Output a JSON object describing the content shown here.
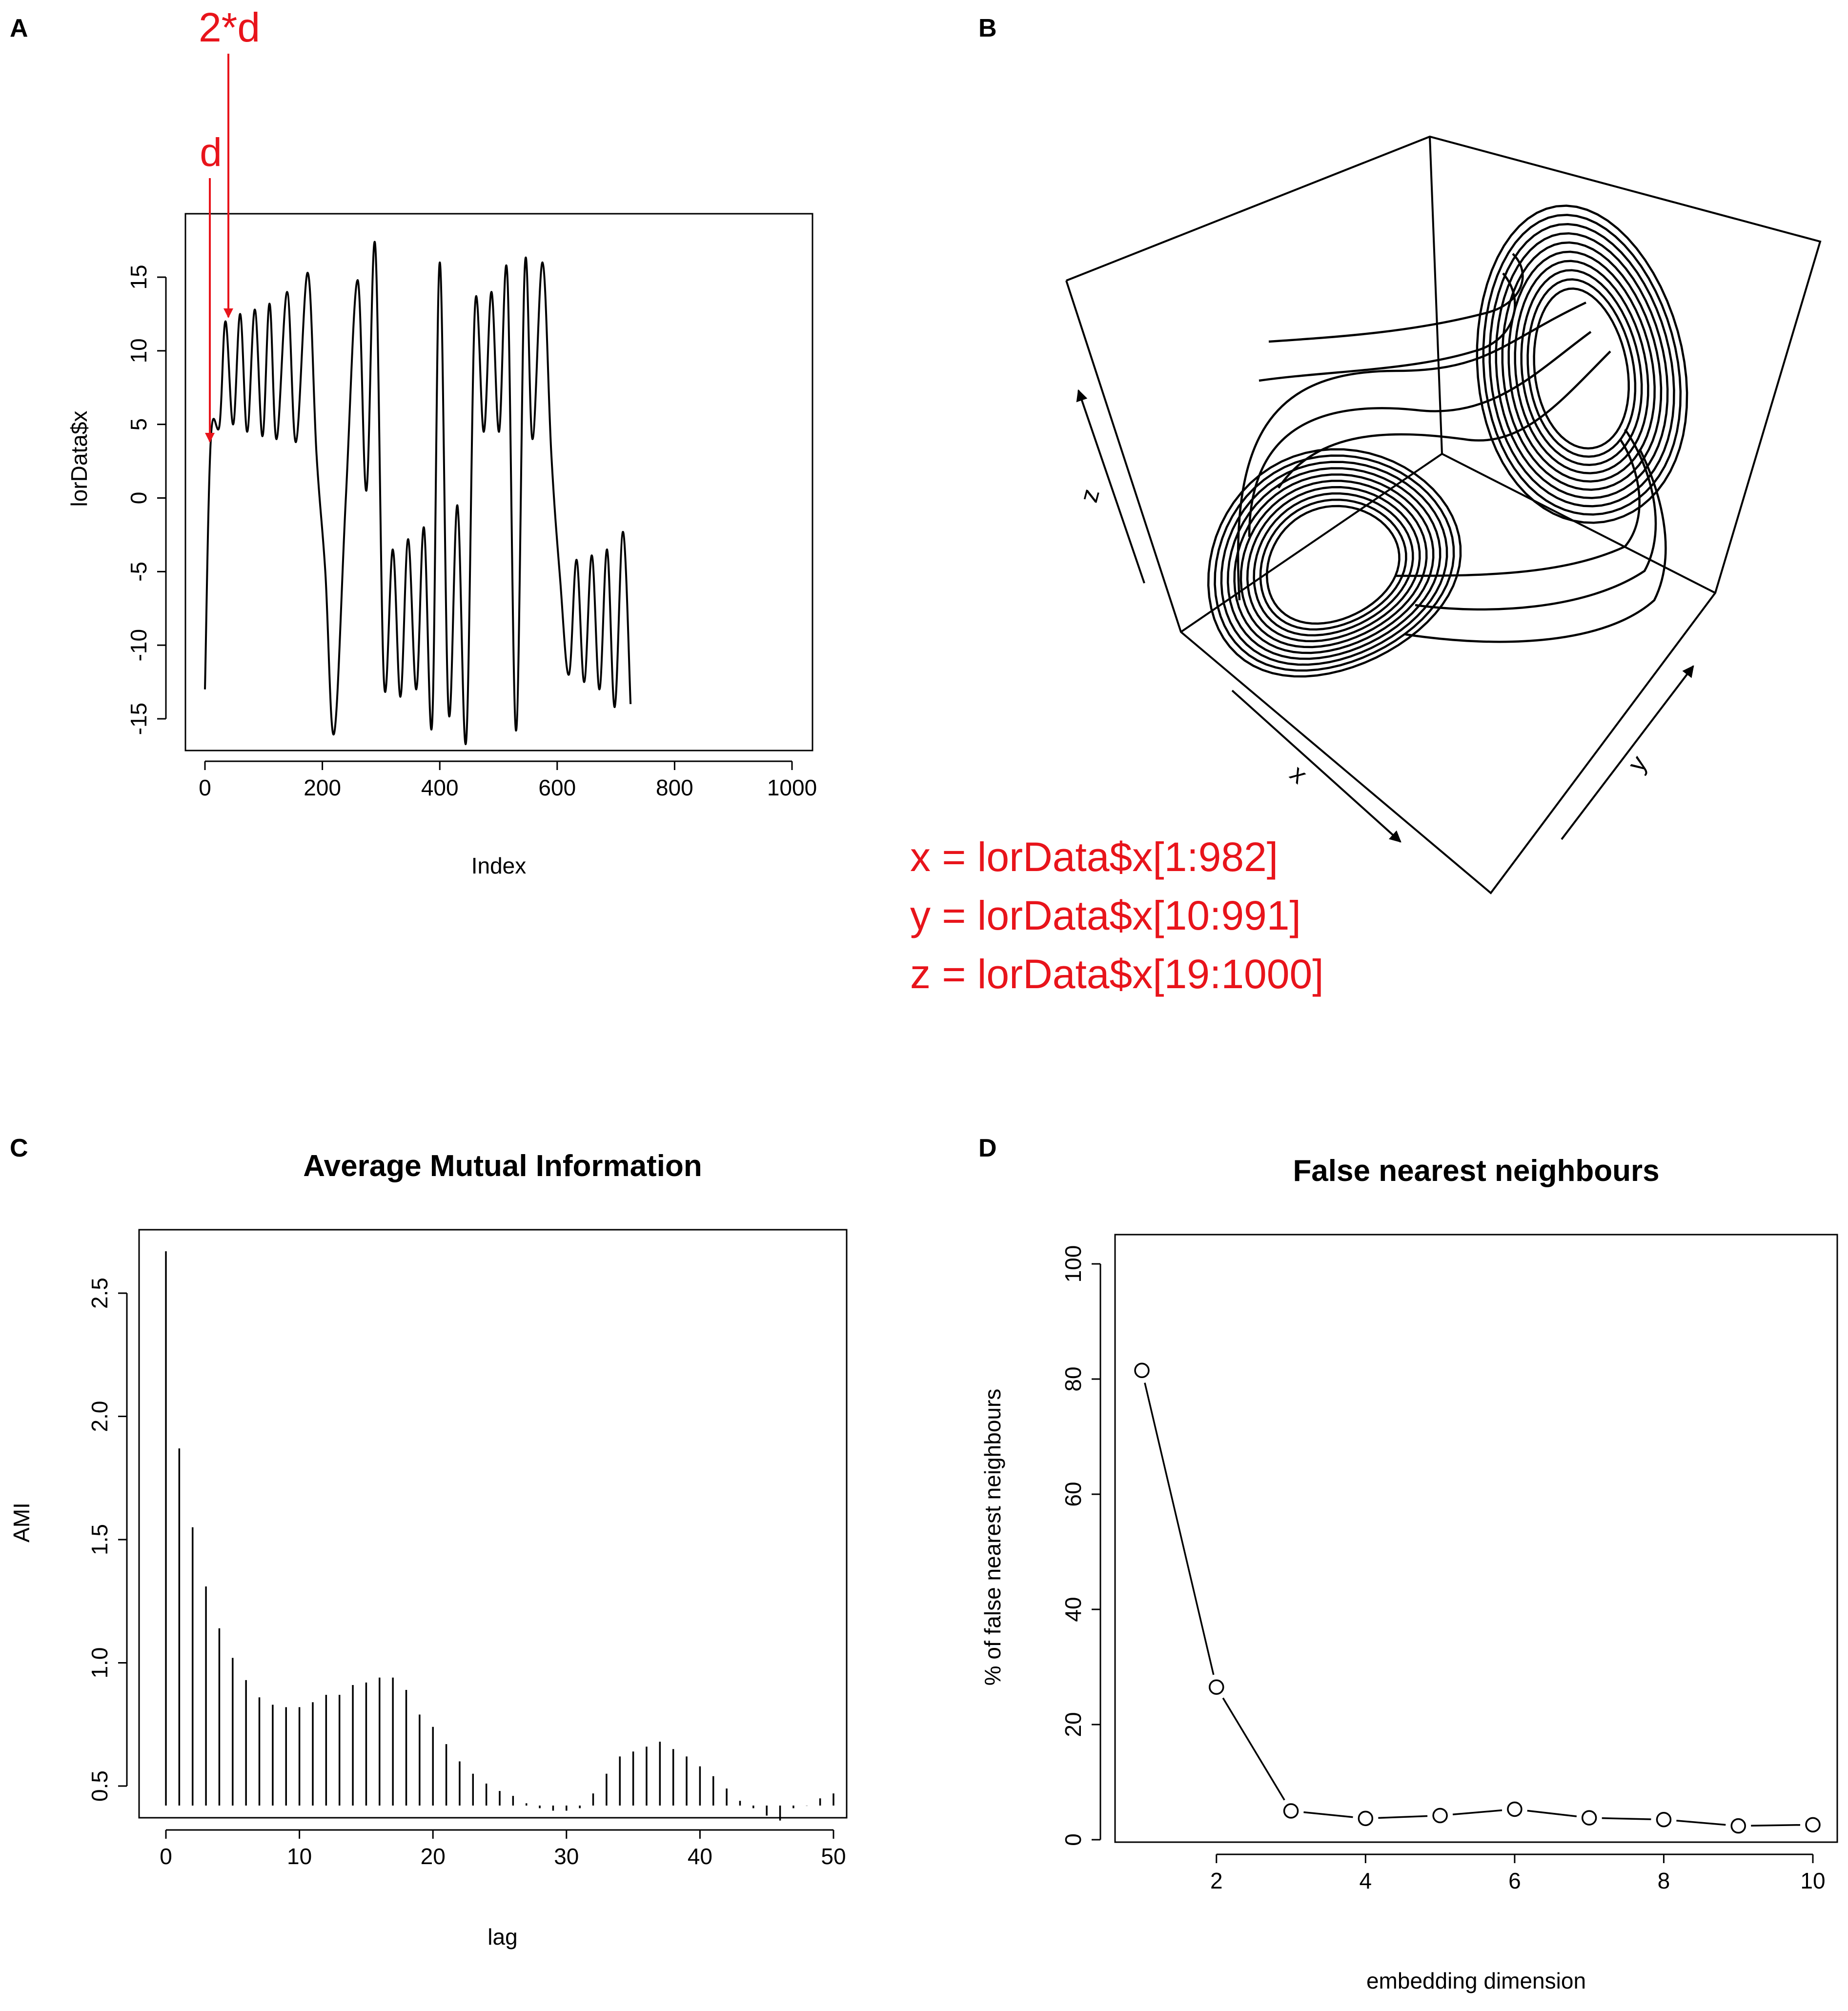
{
  "panels": {
    "a": {
      "letter": "A",
      "annotation_d": "d",
      "annotation_2d": "2*d"
    },
    "b": {
      "letter": "B",
      "axis_x": "x",
      "axis_y": "y",
      "axis_z": "z",
      "eq_x": "x = lorData$x[1:982]",
      "eq_y": "y = lorData$x[10:991]",
      "eq_z": "z = lorData$x[19:1000]"
    },
    "c": {
      "letter": "C"
    },
    "d": {
      "letter": "D"
    }
  },
  "colors": {
    "annotation": "#e8141b",
    "line": "#000000"
  },
  "chart_data": [
    {
      "id": "A",
      "type": "line",
      "title": "",
      "xlabel": "Index",
      "ylabel": "lorData$x",
      "xlim": [
        0,
        1000
      ],
      "ylim": [
        -17,
        18
      ],
      "xticks": [
        "0",
        "200",
        "400",
        "600",
        "800",
        "1000"
      ],
      "yticks": [
        "-15",
        "-10",
        "-5",
        "0",
        "5",
        "10",
        "15"
      ],
      "keypoints": [
        [
          0,
          -13
        ],
        [
          10,
          4
        ],
        [
          25,
          5
        ],
        [
          35,
          12
        ],
        [
          48,
          5
        ],
        [
          60,
          12.5
        ],
        [
          72,
          4.5
        ],
        [
          85,
          12.8
        ],
        [
          98,
          4.2
        ],
        [
          110,
          13.2
        ],
        [
          122,
          4
        ],
        [
          140,
          14
        ],
        [
          155,
          3.8
        ],
        [
          175,
          15.3
        ],
        [
          190,
          3
        ],
        [
          205,
          -5
        ],
        [
          220,
          -16
        ],
        [
          240,
          0
        ],
        [
          260,
          14.8
        ],
        [
          275,
          0.5
        ],
        [
          290,
          17.2
        ],
        [
          305,
          -12.5
        ],
        [
          320,
          -3.5
        ],
        [
          333,
          -13.5
        ],
        [
          346,
          -2.8
        ],
        [
          360,
          -13
        ],
        [
          373,
          -2
        ],
        [
          387,
          -15.3
        ],
        [
          400,
          16
        ],
        [
          415,
          -14.5
        ],
        [
          430,
          -0.5
        ],
        [
          445,
          -16.5
        ],
        [
          460,
          13
        ],
        [
          475,
          4.5
        ],
        [
          488,
          14
        ],
        [
          501,
          4.5
        ],
        [
          515,
          15.2
        ],
        [
          530,
          -15.8
        ],
        [
          545,
          15.8
        ],
        [
          558,
          4
        ],
        [
          575,
          16
        ],
        [
          590,
          3
        ],
        [
          605,
          -5.5
        ],
        [
          620,
          -12
        ],
        [
          633,
          -4.2
        ],
        [
          646,
          -12.5
        ],
        [
          659,
          -3.9
        ],
        [
          672,
          -13
        ],
        [
          685,
          -3.5
        ],
        [
          698,
          -14.2
        ],
        [
          712,
          -2.3
        ],
        [
          725,
          -14
        ]
      ]
    },
    {
      "id": "C",
      "type": "bar",
      "title": "Average Mutual Information",
      "xlabel": "lag",
      "ylabel": "AMI",
      "xlim": [
        0,
        50
      ],
      "ylim": [
        0.35,
        2.75
      ],
      "xticks": [
        "0",
        "10",
        "20",
        "30",
        "40",
        "50"
      ],
      "yticks": [
        "0.5",
        "1.0",
        "1.5",
        "2.0",
        "2.5"
      ],
      "x": [
        0,
        1,
        2,
        3,
        4,
        5,
        6,
        7,
        8,
        9,
        10,
        11,
        12,
        13,
        14,
        15,
        16,
        17,
        18,
        19,
        20,
        21,
        22,
        23,
        24,
        25,
        26,
        27,
        28,
        29,
        30,
        31,
        32,
        33,
        34,
        35,
        36,
        37,
        38,
        39,
        40,
        41,
        42,
        43,
        44,
        45,
        46,
        47,
        48,
        49,
        50
      ],
      "values": [
        2.67,
        1.87,
        1.55,
        1.31,
        1.14,
        1.02,
        0.93,
        0.86,
        0.83,
        0.82,
        0.82,
        0.84,
        0.87,
        0.87,
        0.91,
        0.92,
        0.94,
        0.94,
        0.89,
        0.79,
        0.74,
        0.67,
        0.6,
        0.55,
        0.51,
        0.48,
        0.46,
        0.43,
        0.41,
        0.4,
        0.4,
        0.41,
        0.47,
        0.55,
        0.62,
        0.64,
        0.66,
        0.68,
        0.65,
        0.62,
        0.58,
        0.54,
        0.49,
        0.44,
        0.41,
        0.38,
        0.36,
        0.41,
        0.42,
        0.45,
        0.47
      ]
    },
    {
      "id": "D",
      "type": "line",
      "title": "False nearest neighbours",
      "xlabel": "embedding dimension",
      "ylabel": "% of false nearest neighbours",
      "xlim": [
        0.8,
        10.2
      ],
      "ylim": [
        -2,
        102
      ],
      "xticks": [
        "2",
        "4",
        "6",
        "8",
        "10"
      ],
      "yticks": [
        "0",
        "20",
        "40",
        "60",
        "80",
        "100"
      ],
      "x": [
        1,
        2,
        3,
        4,
        5,
        6,
        7,
        8,
        9,
        10
      ],
      "values": [
        81.5,
        26.5,
        5,
        3.7,
        4.2,
        5.3,
        3.8,
        3.5,
        2.4,
        2.6
      ]
    }
  ]
}
